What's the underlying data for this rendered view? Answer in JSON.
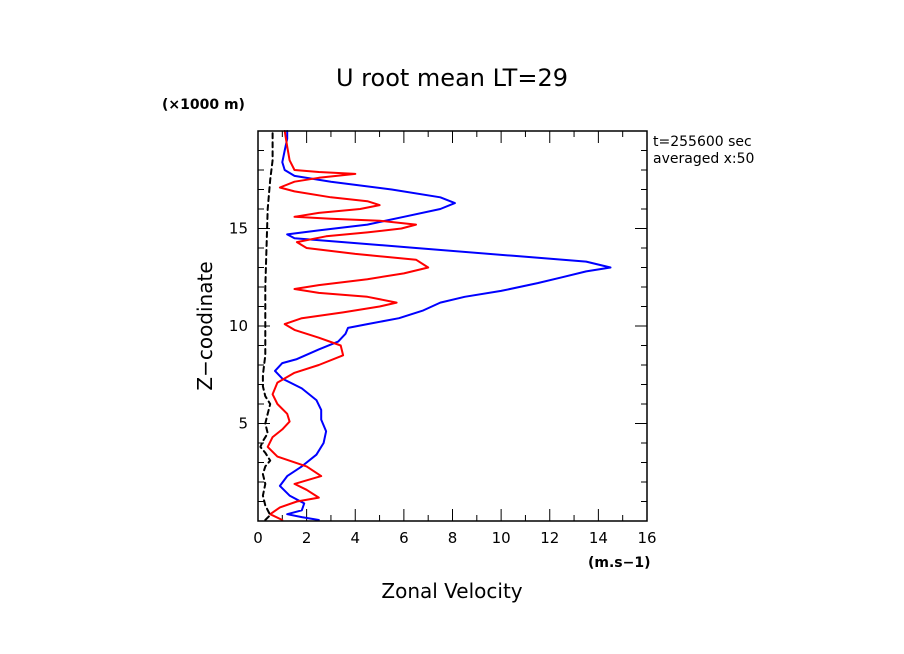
{
  "chart_data": {
    "type": "line",
    "title": "U root mean LT=29",
    "xlabel": "Zonal Velocity",
    "ylabel": "Z−coodinate",
    "x_unit": "(m.s−1)",
    "y_unit": "(×1000 m)",
    "xlim": [
      0,
      16
    ],
    "ylim": [
      0,
      20
    ],
    "x_ticks": [
      0,
      2,
      4,
      6,
      8,
      10,
      12,
      14,
      16
    ],
    "y_ticks": [
      5,
      10,
      15
    ],
    "annotations": [
      "t=255600 sec",
      "averaged  x:50"
    ],
    "series": [
      {
        "color": "#0000ff",
        "dash": "solid",
        "points": [
          [
            2.5,
            0.05
          ],
          [
            1.8,
            0.2
          ],
          [
            1.2,
            0.35
          ],
          [
            1.8,
            0.55
          ],
          [
            1.9,
            0.9
          ],
          [
            1.3,
            1.3
          ],
          [
            0.9,
            1.8
          ],
          [
            1.2,
            2.3
          ],
          [
            1.8,
            2.8
          ],
          [
            2.4,
            3.4
          ],
          [
            2.7,
            4.0
          ],
          [
            2.8,
            4.6
          ],
          [
            2.6,
            5.2
          ],
          [
            2.6,
            5.7
          ],
          [
            2.4,
            6.2
          ],
          [
            1.8,
            6.8
          ],
          [
            1.0,
            7.3
          ],
          [
            0.7,
            7.7
          ],
          [
            1.0,
            8.1
          ],
          [
            1.6,
            8.3
          ],
          [
            2.5,
            8.8
          ],
          [
            3.3,
            9.2
          ],
          [
            3.6,
            9.6
          ],
          [
            3.7,
            9.9
          ],
          [
            4.5,
            10.1
          ],
          [
            5.8,
            10.4
          ],
          [
            6.8,
            10.8
          ],
          [
            7.5,
            11.2
          ],
          [
            8.5,
            11.5
          ],
          [
            10.0,
            11.8
          ],
          [
            11.5,
            12.2
          ],
          [
            12.5,
            12.5
          ],
          [
            13.5,
            12.8
          ],
          [
            14.5,
            13.0
          ],
          [
            13.5,
            13.3
          ],
          [
            10.5,
            13.6
          ],
          [
            6.5,
            14.0
          ],
          [
            3.5,
            14.3
          ],
          [
            1.5,
            14.5
          ],
          [
            1.2,
            14.7
          ],
          [
            2.5,
            14.9
          ],
          [
            4.5,
            15.2
          ],
          [
            6.0,
            15.6
          ],
          [
            7.5,
            16.0
          ],
          [
            8.1,
            16.3
          ],
          [
            7.5,
            16.6
          ],
          [
            5.5,
            17.0
          ],
          [
            3.0,
            17.4
          ],
          [
            1.5,
            17.7
          ],
          [
            1.1,
            18.0
          ],
          [
            1.0,
            18.4
          ],
          [
            1.1,
            19.0
          ],
          [
            1.2,
            19.6
          ],
          [
            1.2,
            20.0
          ]
        ]
      },
      {
        "color": "#ff0000",
        "dash": "solid",
        "points": [
          [
            1.0,
            0.05
          ],
          [
            0.5,
            0.35
          ],
          [
            0.9,
            0.7
          ],
          [
            1.6,
            1.0
          ],
          [
            2.5,
            1.2
          ],
          [
            2.0,
            1.6
          ],
          [
            1.5,
            1.9
          ],
          [
            2.6,
            2.3
          ],
          [
            2.0,
            2.8
          ],
          [
            0.8,
            3.3
          ],
          [
            0.4,
            3.8
          ],
          [
            0.6,
            4.3
          ],
          [
            1.0,
            4.7
          ],
          [
            1.3,
            5.1
          ],
          [
            1.2,
            5.5
          ],
          [
            0.8,
            6.0
          ],
          [
            0.6,
            6.5
          ],
          [
            0.8,
            7.1
          ],
          [
            1.5,
            7.6
          ],
          [
            2.5,
            8.0
          ],
          [
            3.5,
            8.5
          ],
          [
            3.4,
            9.0
          ],
          [
            2.5,
            9.4
          ],
          [
            1.5,
            9.8
          ],
          [
            1.1,
            10.1
          ],
          [
            1.8,
            10.4
          ],
          [
            3.5,
            10.7
          ],
          [
            5.0,
            11.0
          ],
          [
            5.7,
            11.2
          ],
          [
            4.5,
            11.5
          ],
          [
            2.5,
            11.7
          ],
          [
            1.5,
            11.9
          ],
          [
            2.5,
            12.1
          ],
          [
            4.5,
            12.4
          ],
          [
            6.0,
            12.7
          ],
          [
            7.0,
            13.0
          ],
          [
            6.5,
            13.4
          ],
          [
            4.0,
            13.7
          ],
          [
            2.0,
            14.0
          ],
          [
            1.6,
            14.3
          ],
          [
            2.8,
            14.6
          ],
          [
            4.5,
            14.8
          ],
          [
            5.9,
            15.0
          ],
          [
            6.5,
            15.2
          ],
          [
            5.0,
            15.4
          ],
          [
            3.0,
            15.5
          ],
          [
            1.5,
            15.6
          ],
          [
            2.5,
            15.8
          ],
          [
            4.2,
            16.0
          ],
          [
            5.0,
            16.2
          ],
          [
            4.5,
            16.4
          ],
          [
            3.0,
            16.6
          ],
          [
            1.5,
            16.9
          ],
          [
            0.9,
            17.1
          ],
          [
            1.5,
            17.4
          ],
          [
            2.5,
            17.6
          ],
          [
            4.0,
            17.8
          ],
          [
            2.5,
            17.9
          ],
          [
            1.5,
            18.0
          ],
          [
            1.3,
            18.5
          ],
          [
            1.2,
            19.2
          ],
          [
            1.1,
            20.0
          ]
        ]
      },
      {
        "color": "#000000",
        "dash": "dashed",
        "points": [
          [
            0.3,
            0.05
          ],
          [
            0.5,
            0.3
          ],
          [
            0.3,
            0.8
          ],
          [
            0.2,
            1.3
          ],
          [
            0.3,
            1.9
          ],
          [
            0.2,
            2.4
          ],
          [
            0.3,
            2.8
          ],
          [
            0.5,
            3.1
          ],
          [
            0.3,
            3.5
          ],
          [
            0.1,
            3.8
          ],
          [
            0.2,
            4.1
          ],
          [
            0.4,
            4.5
          ],
          [
            0.3,
            5.0
          ],
          [
            0.4,
            5.5
          ],
          [
            0.5,
            6.0
          ],
          [
            0.3,
            6.4
          ],
          [
            0.2,
            6.9
          ],
          [
            0.2,
            7.5
          ],
          [
            0.3,
            8.5
          ],
          [
            0.3,
            10.0
          ],
          [
            0.3,
            12.0
          ],
          [
            0.35,
            14.0
          ],
          [
            0.4,
            16.0
          ],
          [
            0.5,
            17.5
          ],
          [
            0.6,
            18.5
          ],
          [
            0.6,
            20.0
          ]
        ]
      }
    ]
  }
}
